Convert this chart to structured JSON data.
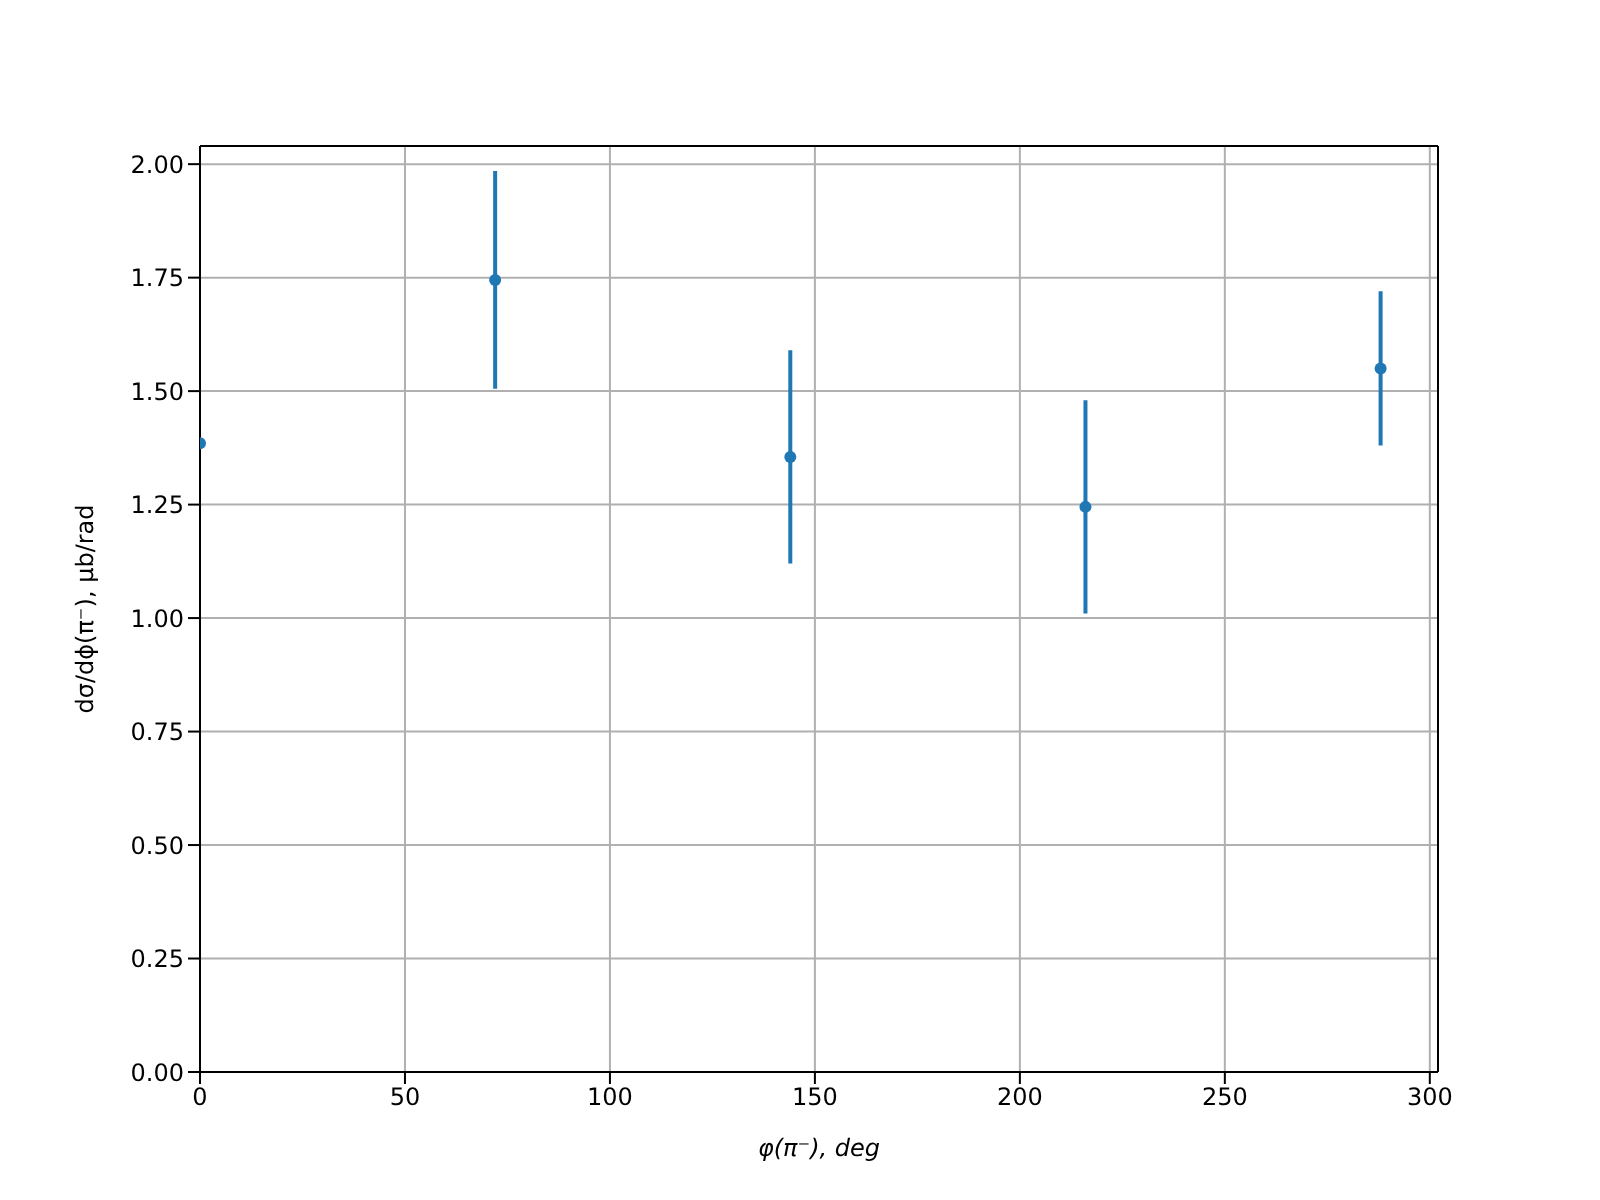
{
  "chart_data": {
    "type": "scatter",
    "xlabel": "φ(π⁻), deg",
    "ylabel": "dσ/dϕ(π⁻), μb/rad",
    "x": [
      0,
      72,
      144,
      216,
      288
    ],
    "series": [
      {
        "color": "#1f77b4",
        "values": [
          1.385,
          1.745,
          1.355,
          1.245,
          1.55
        ],
        "errors": [
          null,
          0.24,
          0.235,
          0.235,
          0.17
        ]
      }
    ],
    "xlim": [
      0,
      302
    ],
    "xticks": [
      0,
      50,
      100,
      150,
      200,
      250,
      300
    ],
    "ylim": [
      0,
      2.04
    ],
    "yticks": [
      {
        "value": 0,
        "label": "0.00"
      },
      0.25,
      {
        "value": 0.5,
        "label": "0.50"
      },
      0.75,
      {
        "value": 1,
        "label": "1.00"
      },
      1.25,
      {
        "value": 1.5,
        "label": "1.50"
      },
      1.75,
      {
        "value": 2,
        "label": "2.00"
      }
    ],
    "grid": true,
    "marker": "circle"
  }
}
